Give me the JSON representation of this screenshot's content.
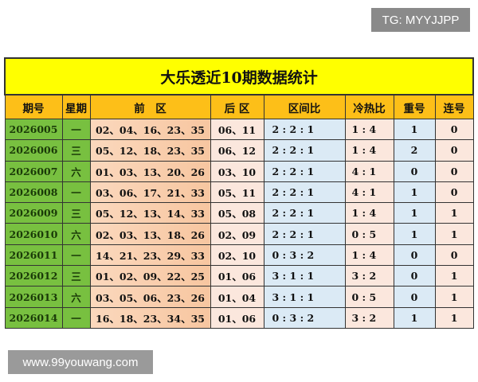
{
  "watermarks": {
    "top": "TG: MYYJJPP",
    "bottom": "www.99youwang.com"
  },
  "title": "大乐透近10期数据统计",
  "headers": [
    "期号",
    "星期",
    "前　区",
    "后 区",
    "区间比",
    "冷热比",
    "重号",
    "连号"
  ],
  "rows": [
    [
      "2026005",
      "一",
      "02、04、16、23、35",
      "06、11",
      "2 : 2 : 1",
      "1 : 4",
      "1",
      "0"
    ],
    [
      "2026006",
      "三",
      "05、12、18、23、35",
      "06、12",
      "2 : 2 : 1",
      "1 : 4",
      "2",
      "0"
    ],
    [
      "2026007",
      "六",
      "01、03、13、20、26",
      "03、10",
      "2 : 2 : 1",
      "4 : 1",
      "0",
      "0"
    ],
    [
      "2026008",
      "一",
      "03、06、17、21、33",
      "05、11",
      "2 : 2 : 1",
      "4 : 1",
      "1",
      "0"
    ],
    [
      "2026009",
      "三",
      "05、12、13、14、33",
      "05、08",
      "2 : 2 : 1",
      "1 : 4",
      "1",
      "1"
    ],
    [
      "2026010",
      "六",
      "02、03、13、18、26",
      "02、09",
      "2 : 2 : 1",
      "0 : 5",
      "1",
      "1"
    ],
    [
      "2026011",
      "一",
      "14、21、23、29、33",
      "02、10",
      "0 : 3 : 2",
      "1 : 4",
      "0",
      "0"
    ],
    [
      "2026012",
      "三",
      "01、02、09、22、25",
      "01、06",
      "3 : 1 : 1",
      "3 : 2",
      "0",
      "1"
    ],
    [
      "2026013",
      "六",
      "03、05、06、23、26",
      "01、04",
      "3 : 1 : 1",
      "0 : 5",
      "0",
      "1"
    ],
    [
      "2026014",
      "一",
      "16、18、23、34、35",
      "01、06",
      "0 : 3 : 2",
      "3 : 2",
      "1",
      "1"
    ]
  ]
}
